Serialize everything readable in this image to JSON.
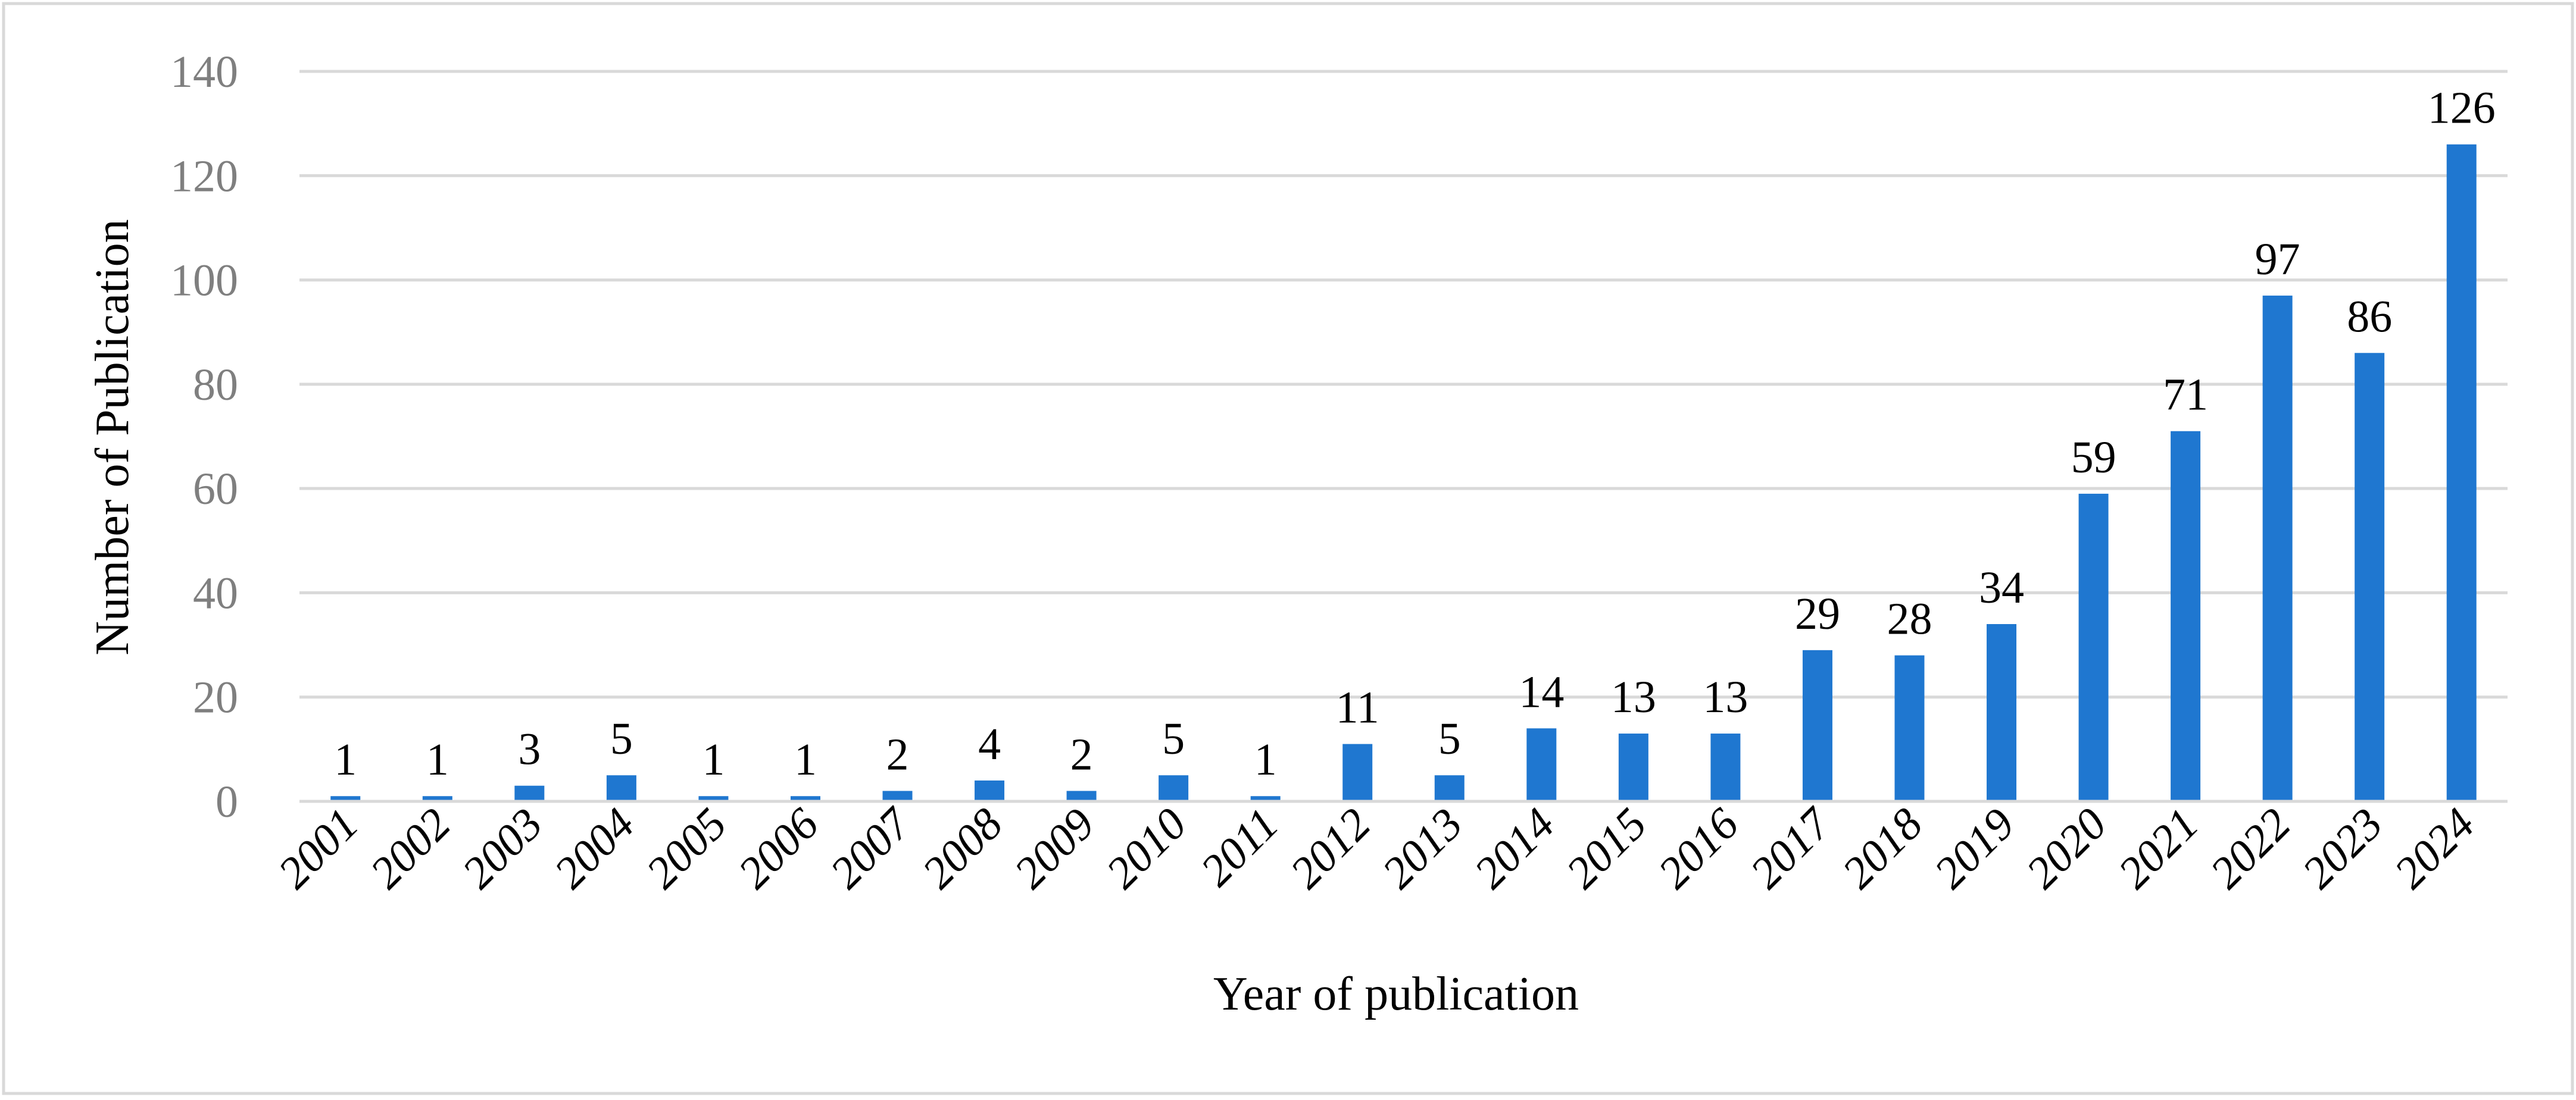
{
  "chart_data": {
    "type": "bar",
    "title": "",
    "xlabel": "Year of publication",
    "ylabel": "Number of Publication",
    "categories": [
      "2001",
      "2002",
      "2003",
      "2004",
      "2005",
      "2006",
      "2007",
      "2008",
      "2009",
      "2010",
      "2011",
      "2012",
      "2013",
      "2014",
      "2015",
      "2016",
      "2017",
      "2018",
      "2019",
      "2020",
      "2021",
      "2022",
      "2023",
      "2024"
    ],
    "values": [
      1,
      1,
      3,
      5,
      1,
      1,
      2,
      4,
      2,
      5,
      1,
      11,
      5,
      14,
      13,
      13,
      29,
      28,
      34,
      59,
      71,
      97,
      86,
      126
    ],
    "ylim": [
      0,
      140
    ],
    "yticks": [
      0,
      20,
      40,
      60,
      80,
      100,
      120,
      140
    ],
    "grid": true,
    "legend": "none",
    "data_labels": true,
    "bar_color": "#1f77d0",
    "grid_color": "#d9d9d9",
    "axis_color": "#d9d9d9",
    "tick_label_color": "#7f7f7f",
    "text_color": "#000000",
    "border_color": "#d9d9d9"
  }
}
